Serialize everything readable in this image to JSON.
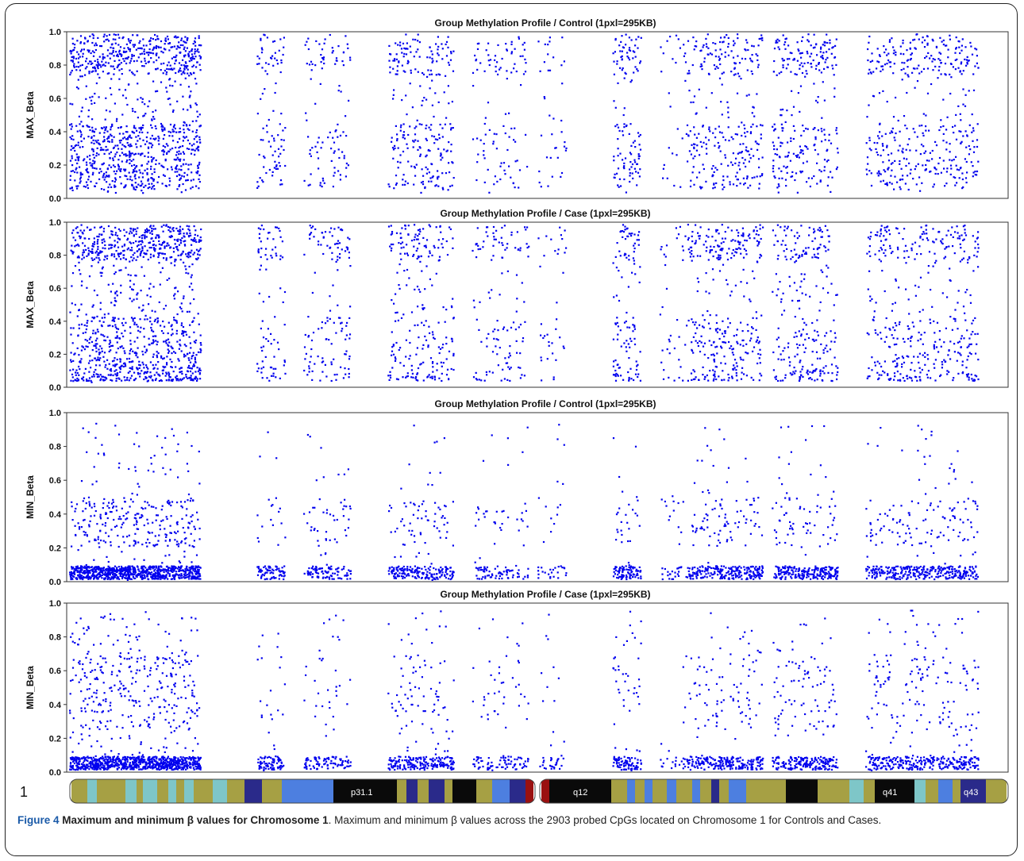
{
  "caption": {
    "label": "Figure 4",
    "title": "Maximum and minimum β values for Chromosome 1",
    "text": "Maximum and minimum β values across the 2903 probed CpGs located on Chromosome 1 for Controls and Cases."
  },
  "chromosome": {
    "number": "1",
    "band_labels": [
      "p31.1",
      "q12",
      "q41",
      "q43"
    ]
  },
  "colors": {
    "points": "#0000ee",
    "band_olive": "#a6a044",
    "band_teal": "#7ec6c8",
    "band_blue": "#4d7fe0",
    "band_navy": "#2a2a8a",
    "band_black": "#0a0a0a",
    "centromere": "#9a1010"
  },
  "chart_data": [
    {
      "type": "scatter",
      "title": "Group Methylation Profile / Control  (1pxl=295KB)",
      "ylabel": "MAX_Beta",
      "ylim": [
        0,
        1
      ],
      "yticks": [
        "0.0",
        "0.2",
        "0.4",
        "0.6",
        "0.8",
        "1.0"
      ],
      "grid": false,
      "n_points": 2903,
      "clusters": [
        {
          "x": [
            0.0,
            0.14
          ],
          "density": 1.0
        },
        {
          "x": [
            0.2,
            0.23
          ],
          "density": 0.35
        },
        {
          "x": [
            0.25,
            0.3
          ],
          "density": 0.3
        },
        {
          "x": [
            0.34,
            0.41
          ],
          "density": 0.45
        },
        {
          "x": [
            0.43,
            0.49
          ],
          "density": 0.25
        },
        {
          "x": [
            0.5,
            0.53
          ],
          "density": 0.15
        },
        {
          "x": [
            0.58,
            0.61
          ],
          "density": 0.55
        },
        {
          "x": [
            0.63,
            0.66
          ],
          "density": 0.15
        },
        {
          "x": [
            0.66,
            0.74
          ],
          "density": 0.5
        },
        {
          "x": [
            0.75,
            0.82
          ],
          "density": 0.5
        },
        {
          "x": [
            0.85,
            0.97
          ],
          "density": 0.45
        }
      ]
    },
    {
      "type": "scatter",
      "title": "Group Methylation Profile / Case  (1pxl=295KB)",
      "ylabel": "MAX_Beta",
      "ylim": [
        0,
        1
      ],
      "yticks": [
        "0.0",
        "0.2",
        "0.4",
        "0.6",
        "0.8",
        "1.0"
      ],
      "grid": false,
      "n_points": 2903
    },
    {
      "type": "scatter",
      "title": "Group Methylation Profile / Control  (1pxl=295KB)",
      "ylabel": "MIN_Beta",
      "ylim": [
        0,
        1
      ],
      "yticks": [
        "0.0",
        "0.2",
        "0.4",
        "0.6",
        "0.8",
        "1.0"
      ],
      "grid": false,
      "n_points": 2903
    },
    {
      "type": "scatter",
      "title": "Group Methylation Profile / Case  (1pxl=295KB)",
      "ylabel": "MIN_Beta",
      "ylim": [
        0,
        1
      ],
      "yticks": [
        "0.0",
        "0.2",
        "0.4",
        "0.6",
        "0.8",
        "1.0"
      ],
      "grid": false,
      "n_points": 2903
    }
  ]
}
